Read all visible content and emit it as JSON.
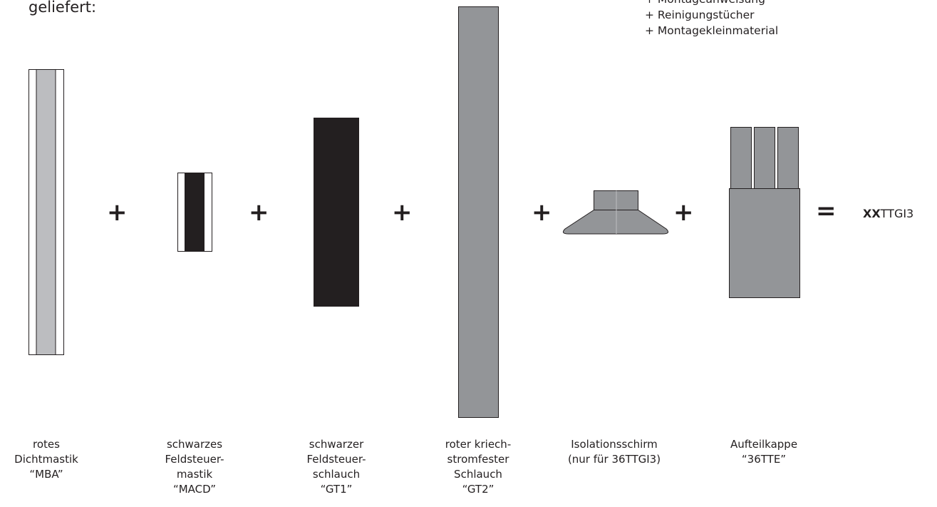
{
  "intro_text": "geliefert:",
  "accessories": [
    "+ Montageanweisung",
    "+ Reinigungstücher",
    "+ Montagekleinmaterial"
  ],
  "operators": [
    "+",
    "+",
    "+",
    "+",
    "+",
    "="
  ],
  "result": {
    "prefix": "XX",
    "suffix": "TTGI3"
  },
  "components": [
    {
      "caption": "rotes\nDichtmastik\n“MBA”"
    },
    {
      "caption": "schwarzes\nFeldsteuer-\nmastik\n“MACD”"
    },
    {
      "caption": "schwarzer\nFeldsteuer-\nschlauch\n“GT1”"
    },
    {
      "caption": "roter kriech-\nstromfester\nSchlauch\n“GT2”"
    },
    {
      "caption": "Isolationsschirm\n(nur für 36TTGI3)"
    },
    {
      "caption": "Aufteilkappe\n“36TTE”"
    }
  ],
  "colors": {
    "light_gray": "#bcbdc0",
    "mid_gray": "#939598",
    "black": "#231f20",
    "outline": "#231f20"
  }
}
